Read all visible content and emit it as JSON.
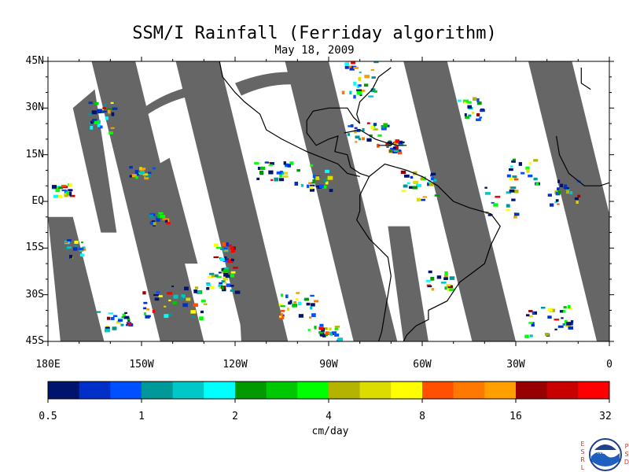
{
  "title": "SSM/I Rainfall (Ferriday algorithm)",
  "subtitle": "May 18, 2009",
  "lat_labels": [
    "45N",
    "30N",
    "15N",
    "EQ",
    "15S",
    "30S",
    "45S"
  ],
  "lon_labels": [
    "180E",
    "150W",
    "120W",
    "90W",
    "60W",
    "30W",
    "0"
  ],
  "colorbar": {
    "unit": "cm/day",
    "tick_labels": [
      "0.5",
      "1",
      "2",
      "4",
      "8",
      "16",
      "32"
    ],
    "colors": [
      "#00136d",
      "#0030c8",
      "#0050ff",
      "#009999",
      "#00c8c8",
      "#00ffff",
      "#009900",
      "#00c800",
      "#00ff00",
      "#b4b400",
      "#dcdc00",
      "#ffff00",
      "#ff5000",
      "#ff7800",
      "#ffa000",
      "#960000",
      "#c80000",
      "#ff0000"
    ]
  },
  "map": {
    "lon_range": [
      -180,
      0
    ],
    "lat_range": [
      -45,
      45
    ],
    "swath_color": "#666666",
    "land_color": "#000000",
    "background": "#ffffff"
  },
  "logo": {
    "left_letters": [
      "E",
      "S",
      "R",
      "L"
    ],
    "right_letters": [
      "P",
      "S",
      "D"
    ],
    "emblem_text": "NOAA"
  }
}
